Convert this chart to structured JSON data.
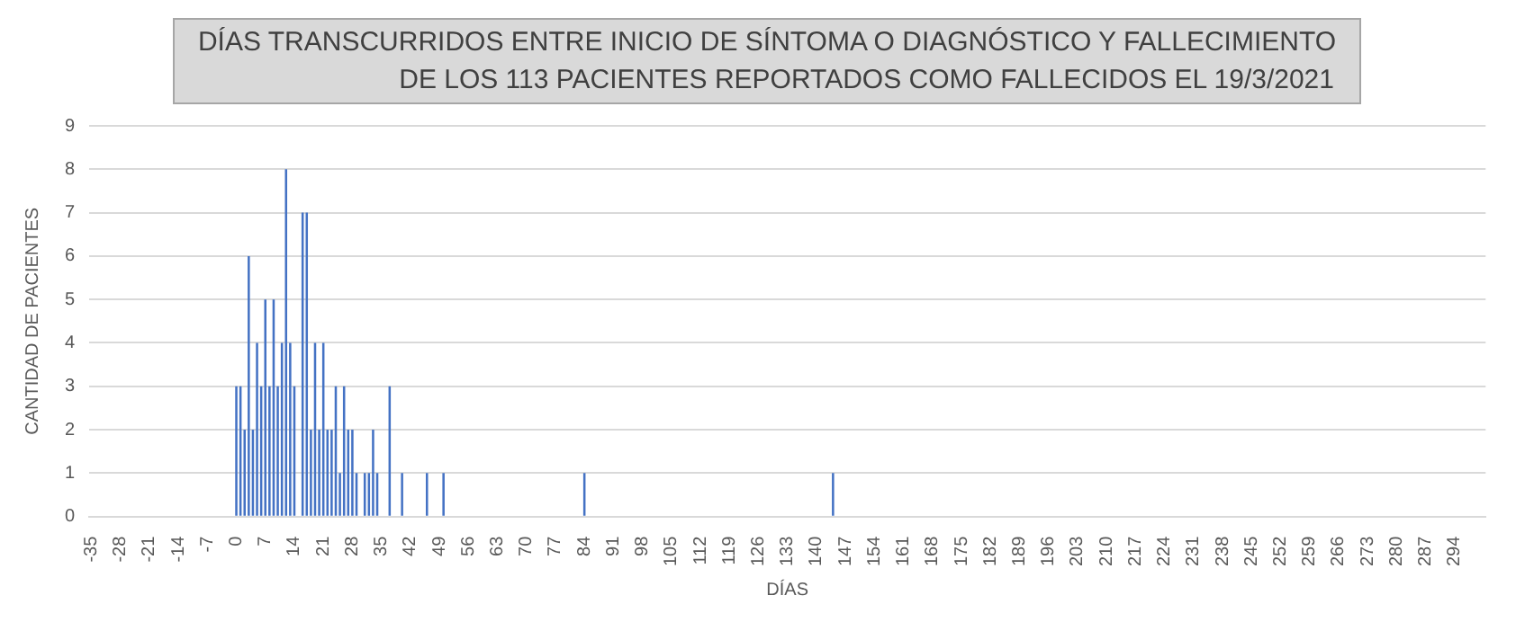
{
  "chart_data": {
    "type": "bar",
    "title": "DÍAS TRANSCURRIDOS ENTRE INICIO DE SÍNTOMA O DIAGNÓSTICO Y FALLECIMIENTO\nDE LOS 113 PACIENTES REPORTADOS COMO FALLECIDOS EL 19/3/2021",
    "xlabel": "DÍAS",
    "ylabel": "CANTIDAD DE PACIENTES",
    "color": "#4472c4",
    "ylim": [
      0,
      9
    ],
    "yticks": [
      0,
      1,
      2,
      3,
      4,
      5,
      6,
      7,
      8,
      9
    ],
    "grid": "y",
    "categories": [
      "-35",
      null,
      null,
      null,
      null,
      null,
      null,
      "-28",
      null,
      null,
      null,
      null,
      null,
      null,
      "-21",
      null,
      null,
      null,
      null,
      null,
      null,
      "-14",
      null,
      null,
      null,
      null,
      null,
      null,
      "-7",
      null,
      null,
      null,
      null,
      null,
      null,
      "0",
      null,
      null,
      null,
      null,
      null,
      null,
      "7",
      null,
      null,
      null,
      null,
      null,
      null,
      "14",
      null,
      null,
      null,
      null,
      null,
      null,
      "21",
      null,
      null,
      null,
      null,
      null,
      null,
      "28",
      null,
      null,
      null,
      null,
      null,
      null,
      "35",
      null,
      null,
      null,
      null,
      null,
      null,
      "42",
      null,
      null,
      null,
      null,
      null,
      null,
      "49",
      null,
      null,
      null,
      null,
      null,
      null,
      "56",
      null,
      null,
      null,
      null,
      null,
      null,
      "63",
      null,
      null,
      null,
      null,
      null,
      null,
      "70",
      null,
      null,
      null,
      null,
      null,
      null,
      "77",
      null,
      null,
      null,
      null,
      null,
      null,
      "84",
      null,
      null,
      null,
      null,
      null,
      null,
      "91",
      null,
      null,
      null,
      null,
      null,
      null,
      "98",
      null,
      null,
      null,
      null,
      null,
      null,
      "105",
      null,
      null,
      null,
      null,
      null,
      null,
      "112",
      null,
      null,
      null,
      null,
      null,
      null,
      "119",
      null,
      null,
      null,
      null,
      null,
      null,
      "126",
      null,
      null,
      null,
      null,
      null,
      null,
      "133",
      null,
      null,
      null,
      null,
      null,
      null,
      "140",
      null,
      null,
      null,
      null,
      null,
      null,
      "147",
      null,
      null,
      null,
      null,
      null,
      null,
      "154",
      null,
      null,
      null,
      null,
      null,
      null,
      "161",
      null,
      null,
      null,
      null,
      null,
      null,
      "168",
      null,
      null,
      null,
      null,
      null,
      null,
      "175",
      null,
      null,
      null,
      null,
      null,
      null,
      "182",
      null,
      null,
      null,
      null,
      null,
      null,
      "189",
      null,
      null,
      null,
      null,
      null,
      null,
      "196",
      null,
      null,
      null,
      null,
      null,
      null,
      "203",
      null,
      null,
      null,
      null,
      null,
      null,
      "210",
      null,
      null,
      null,
      null,
      null,
      null,
      "217",
      null,
      null,
      null,
      null,
      null,
      null,
      "224",
      null,
      null,
      null,
      null,
      null,
      null,
      "231",
      null,
      null,
      null,
      null,
      null,
      null,
      "238",
      null,
      null,
      null,
      null,
      null,
      null,
      "245",
      null,
      null,
      null,
      null,
      null,
      null,
      "252",
      null,
      null,
      null,
      null,
      null,
      null,
      "259",
      null,
      null,
      null,
      null,
      null,
      null,
      "266",
      null,
      null,
      null,
      null,
      null,
      null,
      "273",
      null,
      null,
      null,
      null,
      null,
      null,
      "280",
      null,
      null,
      null,
      null,
      null,
      null,
      "287",
      null,
      null,
      null,
      null,
      null,
      null,
      "294",
      null,
      null,
      null,
      null,
      null,
      null,
      null
    ],
    "values": [
      0,
      0,
      0,
      0,
      0,
      0,
      0,
      0,
      0,
      0,
      0,
      0,
      0,
      0,
      0,
      0,
      0,
      0,
      0,
      0,
      0,
      0,
      0,
      0,
      0,
      0,
      0,
      0,
      0,
      0,
      0,
      0,
      0,
      0,
      0,
      3,
      3,
      2,
      6,
      2,
      4,
      3,
      5,
      3,
      5,
      3,
      4,
      8,
      4,
      3,
      0,
      7,
      7,
      2,
      4,
      2,
      4,
      2,
      2,
      3,
      1,
      3,
      2,
      2,
      1,
      0,
      1,
      1,
      2,
      1,
      0,
      0,
      3,
      0,
      0,
      1,
      0,
      0,
      0,
      0,
      0,
      1,
      0,
      0,
      0,
      1,
      0,
      0,
      0,
      0,
      0,
      0,
      0,
      0,
      0,
      0,
      0,
      0,
      0,
      0,
      0,
      0,
      0,
      0,
      0,
      0,
      0,
      0,
      0,
      0,
      0,
      0,
      0,
      0,
      0,
      0,
      0,
      0,
      0,
      1,
      0,
      0,
      0,
      0,
      0,
      0,
      0,
      0,
      0,
      0,
      0,
      0,
      0,
      0,
      0,
      0,
      0,
      0,
      0,
      0,
      0,
      0,
      0,
      0,
      0,
      0,
      0,
      0,
      0,
      0,
      0,
      0,
      0,
      0,
      0,
      0,
      0,
      0,
      0,
      0,
      0,
      0,
      0,
      0,
      0,
      0,
      0,
      0,
      0,
      0,
      0,
      0,
      0,
      0,
      0,
      0,
      0,
      0,
      0,
      1,
      0,
      0,
      0,
      0,
      0,
      0,
      0,
      0,
      0,
      0,
      0,
      0,
      0,
      0,
      0,
      0,
      0,
      0,
      0,
      0,
      0,
      0,
      0,
      0,
      0,
      0,
      0,
      0,
      0,
      0,
      0,
      0,
      0,
      0,
      0,
      0,
      0,
      0,
      0,
      0,
      0,
      0,
      0,
      0,
      0,
      0,
      0,
      0,
      0,
      0,
      0,
      0,
      0,
      0,
      0,
      0,
      0,
      0,
      0,
      0,
      0,
      0,
      0,
      0,
      0,
      0,
      0,
      0,
      0,
      0,
      0,
      0,
      0,
      0,
      0,
      0,
      0,
      0,
      0,
      0,
      0,
      0,
      0,
      0,
      0,
      0,
      0,
      0,
      0,
      0,
      0,
      0,
      0,
      0,
      0,
      0,
      0,
      0,
      0,
      0,
      0,
      0,
      0,
      0,
      0,
      0,
      0,
      0,
      0,
      0,
      0,
      0,
      0,
      0,
      0,
      0,
      0,
      0,
      0,
      0,
      0,
      0,
      0,
      0,
      0,
      0,
      0,
      0,
      0,
      0,
      0,
      0,
      0,
      0,
      0,
      0,
      0,
      0,
      0,
      0,
      0,
      0,
      0,
      0,
      0,
      0,
      0,
      0,
      0,
      0,
      0,
      0,
      0,
      0,
      0,
      0,
      0
    ]
  }
}
